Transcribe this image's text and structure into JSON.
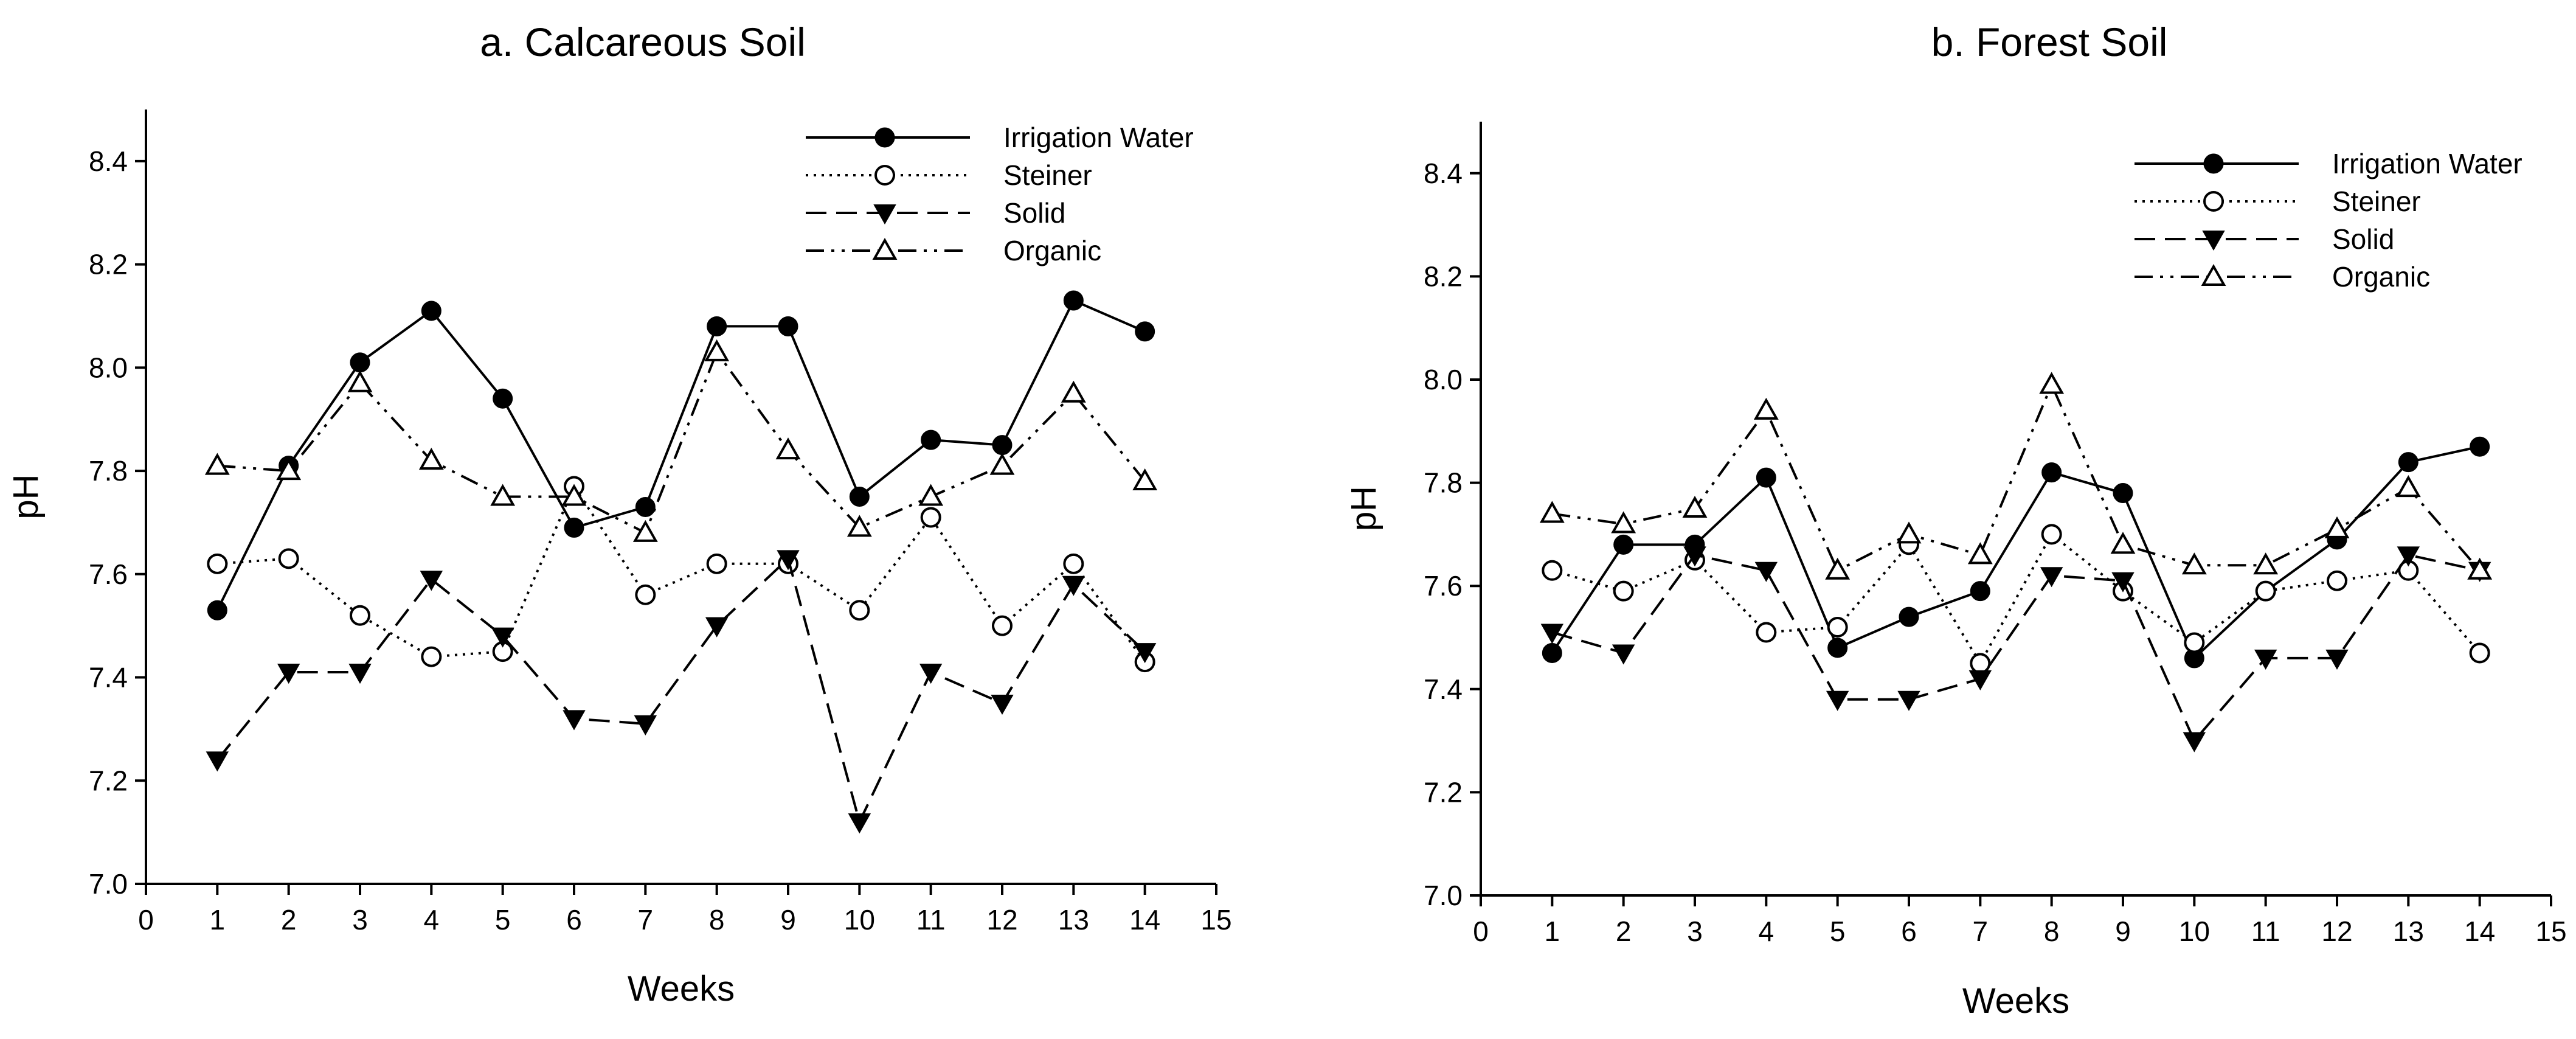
{
  "chart_data": [
    {
      "type": "line",
      "title": "a. Calcareous Soil",
      "xlabel": "Weeks",
      "ylabel": "pH",
      "xlim": [
        0,
        15
      ],
      "ylim": [
        7.0,
        8.5
      ],
      "x_ticks": [
        0,
        1,
        2,
        3,
        4,
        5,
        6,
        7,
        8,
        9,
        10,
        11,
        12,
        13,
        14,
        15
      ],
      "y_ticks": [
        7.0,
        7.2,
        7.4,
        7.6,
        7.8,
        8.0,
        8.2,
        8.4
      ],
      "x_tick_labels": [
        "0",
        "1",
        "2",
        "3",
        "4",
        "5",
        "6",
        "7",
        "8",
        "9",
        "10",
        "11",
        "12",
        "13",
        "14",
        "15"
      ],
      "y_tick_labels": [
        "7.0",
        "7.2",
        "7.4",
        "7.6",
        "7.8",
        "8.0",
        "8.2",
        "8.4"
      ],
      "x": [
        1,
        2,
        3,
        4,
        5,
        6,
        7,
        8,
        9,
        10,
        11,
        12,
        13,
        14
      ],
      "legend_position": "top-right",
      "series": [
        {
          "name": "Irrigation Water",
          "marker": "filled-circle",
          "line": "solid",
          "values": [
            7.53,
            7.81,
            8.01,
            8.11,
            7.94,
            7.69,
            7.73,
            8.08,
            8.08,
            7.75,
            7.86,
            7.85,
            8.13,
            8.07
          ]
        },
        {
          "name": "Steiner",
          "marker": "open-circle",
          "line": "dotted",
          "values": [
            7.62,
            7.63,
            7.52,
            7.44,
            7.45,
            7.77,
            7.56,
            7.62,
            7.62,
            7.53,
            7.71,
            7.5,
            7.62,
            7.43
          ]
        },
        {
          "name": "Solid",
          "marker": "filled-triangle-down",
          "line": "dashed",
          "values": [
            7.24,
            7.41,
            7.41,
            7.59,
            7.48,
            7.32,
            7.31,
            7.5,
            7.63,
            7.12,
            7.41,
            7.35,
            7.58,
            7.45
          ]
        },
        {
          "name": "Organic",
          "marker": "open-triangle-up",
          "line": "dash-dot-dot",
          "values": [
            7.81,
            7.8,
            7.97,
            7.82,
            7.75,
            7.75,
            7.68,
            8.03,
            7.84,
            7.69,
            7.75,
            7.81,
            7.95,
            7.78
          ]
        }
      ]
    },
    {
      "type": "line",
      "title": "b. Forest Soil",
      "xlabel": "Weeks",
      "ylabel": "pH",
      "xlim": [
        0,
        15
      ],
      "ylim": [
        7.0,
        8.5
      ],
      "x_ticks": [
        0,
        1,
        2,
        3,
        4,
        5,
        6,
        7,
        8,
        9,
        10,
        11,
        12,
        13,
        14,
        15
      ],
      "y_ticks": [
        7.0,
        7.2,
        7.4,
        7.6,
        7.8,
        8.0,
        8.2,
        8.4
      ],
      "x_tick_labels": [
        "0",
        "1",
        "2",
        "3",
        "4",
        "5",
        "6",
        "7",
        "8",
        "9",
        "10",
        "11",
        "12",
        "13",
        "14",
        "15"
      ],
      "y_tick_labels": [
        "7.0",
        "7.2",
        "7.4",
        "7.6",
        "7.8",
        "8.0",
        "8.2",
        "8.4"
      ],
      "x": [
        1,
        2,
        3,
        4,
        5,
        6,
        7,
        8,
        9,
        10,
        11,
        12,
        13,
        14
      ],
      "legend_position": "top-right",
      "series": [
        {
          "name": "Irrigation Water",
          "marker": "filled-circle",
          "line": "solid",
          "values": [
            7.47,
            7.68,
            7.68,
            7.81,
            7.48,
            7.54,
            7.59,
            7.82,
            7.78,
            7.46,
            7.59,
            7.69,
            7.84,
            7.87
          ]
        },
        {
          "name": "Steiner",
          "marker": "open-circle",
          "line": "dotted",
          "values": [
            7.63,
            7.59,
            7.65,
            7.51,
            7.52,
            7.68,
            7.45,
            7.7,
            7.59,
            7.49,
            7.59,
            7.61,
            7.63,
            7.47
          ]
        },
        {
          "name": "Solid",
          "marker": "filled-triangle-down",
          "line": "dashed",
          "values": [
            7.51,
            7.47,
            7.66,
            7.63,
            7.38,
            7.38,
            7.42,
            7.62,
            7.61,
            7.3,
            7.46,
            7.46,
            7.66,
            7.63
          ]
        },
        {
          "name": "Organic",
          "marker": "open-triangle-up",
          "line": "dash-dot-dot",
          "values": [
            7.74,
            7.72,
            7.75,
            7.94,
            7.63,
            7.7,
            7.66,
            7.99,
            7.68,
            7.64,
            7.64,
            7.71,
            7.79,
            7.63
          ]
        }
      ]
    }
  ]
}
